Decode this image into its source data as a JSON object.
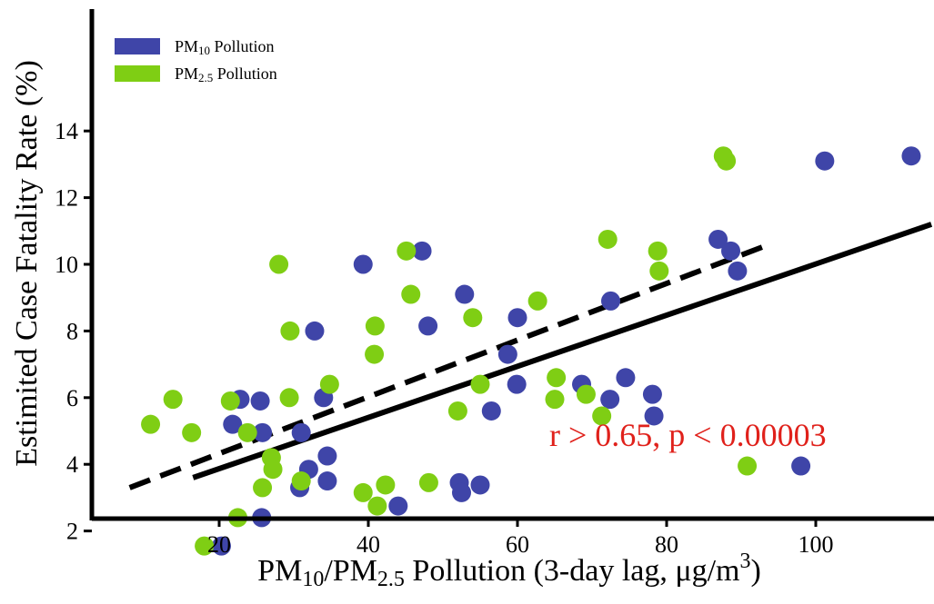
{
  "chart_data": {
    "type": "scatter",
    "ylabel": "Estimited Case Fatality Rate (%)",
    "xlabel_parts": {
      "pm": "PM",
      "sub10": "10",
      "slash": "/PM",
      "sub25": "2.5",
      "rest": " Pollution (3-day lag, μg/m",
      "sup3": "3",
      "close": ")"
    },
    "xlim": [
      0,
      118
    ],
    "ylim": [
      0,
      15
    ],
    "xticks": [
      20,
      40,
      60,
      80,
      100
    ],
    "yticks": [
      2,
      4,
      6,
      8,
      10,
      12,
      14
    ],
    "grid": false,
    "legend_position": "top-left",
    "annotation": "r > 0.65, p < 0.00003",
    "series": [
      {
        "legend": {
          "prefix": "PM",
          "sub": "10",
          "suffix": " Pollution"
        },
        "color": "#3f45a8",
        "points": [
          [
            20.3,
            1.55
          ],
          [
            21.8,
            5.2
          ],
          [
            22.8,
            5.95
          ],
          [
            25.5,
            5.9
          ],
          [
            25.8,
            4.95
          ],
          [
            25.7,
            2.4
          ],
          [
            31.0,
            4.95
          ],
          [
            30.8,
            3.3
          ],
          [
            32.0,
            3.85
          ],
          [
            32.8,
            8.0
          ],
          [
            34.0,
            6.0
          ],
          [
            34.5,
            4.25
          ],
          [
            34.5,
            3.5
          ],
          [
            39.3,
            10.0
          ],
          [
            44.0,
            2.75
          ],
          [
            47.2,
            10.4
          ],
          [
            48.0,
            8.15
          ],
          [
            52.2,
            3.45
          ],
          [
            52.5,
            3.15
          ],
          [
            52.9,
            9.1
          ],
          [
            55.0,
            3.38
          ],
          [
            56.5,
            5.6
          ],
          [
            58.7,
            7.3
          ],
          [
            59.9,
            6.4
          ],
          [
            60.0,
            8.4
          ],
          [
            68.6,
            6.4
          ],
          [
            72.4,
            5.95
          ],
          [
            72.5,
            8.9
          ],
          [
            74.5,
            6.6
          ],
          [
            78.1,
            6.1
          ],
          [
            78.3,
            5.45
          ],
          [
            86.9,
            10.75
          ],
          [
            88.6,
            10.4
          ],
          [
            89.5,
            9.8
          ],
          [
            98.0,
            3.95
          ],
          [
            101.2,
            13.1
          ],
          [
            112.8,
            13.25
          ]
        ]
      },
      {
        "legend": {
          "prefix": "PM",
          "sub": "2.5",
          "suffix": " Pollution"
        },
        "color": "#7fce14",
        "points": [
          [
            10.8,
            5.2
          ],
          [
            13.8,
            5.95
          ],
          [
            16.3,
            4.95
          ],
          [
            18.0,
            1.55
          ],
          [
            21.5,
            5.9
          ],
          [
            22.5,
            2.4
          ],
          [
            23.8,
            4.95
          ],
          [
            25.8,
            3.3
          ],
          [
            27.0,
            4.2
          ],
          [
            27.2,
            3.85
          ],
          [
            28.0,
            10.0
          ],
          [
            29.5,
            8.0
          ],
          [
            29.4,
            6.0
          ],
          [
            31.0,
            3.5
          ],
          [
            34.8,
            6.4
          ],
          [
            39.3,
            3.15
          ],
          [
            40.8,
            7.3
          ],
          [
            40.9,
            8.15
          ],
          [
            41.2,
            2.75
          ],
          [
            42.3,
            3.38
          ],
          [
            45.1,
            10.4
          ],
          [
            45.7,
            9.1
          ],
          [
            48.1,
            3.45
          ],
          [
            52.0,
            5.6
          ],
          [
            54.0,
            8.4
          ],
          [
            55.0,
            6.4
          ],
          [
            62.7,
            8.9
          ],
          [
            65.0,
            5.95
          ],
          [
            65.2,
            6.6
          ],
          [
            69.2,
            6.1
          ],
          [
            71.3,
            5.45
          ],
          [
            72.1,
            10.75
          ],
          [
            78.8,
            10.4
          ],
          [
            79.0,
            9.8
          ],
          [
            87.6,
            13.25
          ],
          [
            88.0,
            13.1
          ],
          [
            90.8,
            3.95
          ]
        ]
      }
    ],
    "fit_lines": [
      {
        "style": "solid",
        "color": "#000000",
        "x": [
          16.5,
          115.5
        ],
        "y": [
          3.6,
          11.2
        ]
      },
      {
        "style": "dashed",
        "color": "#000000",
        "x": [
          8.0,
          93.8
        ],
        "y": [
          3.3,
          10.6
        ]
      }
    ]
  }
}
